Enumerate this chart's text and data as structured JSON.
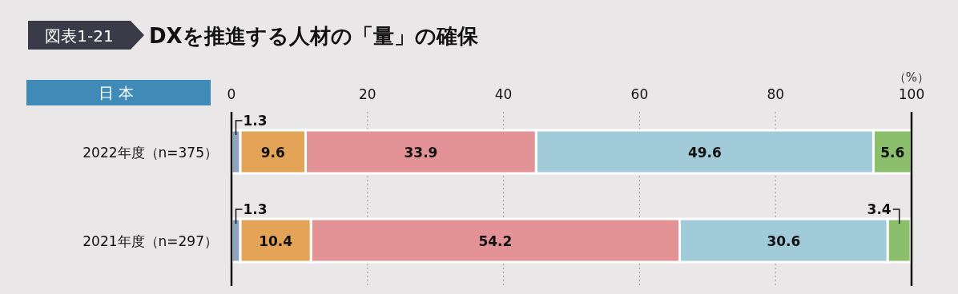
{
  "chart_data": {
    "type": "bar",
    "orientation": "horizontal",
    "stacked": true,
    "title": "DXを推進する人材の「量」の確保",
    "subtitle": "日本",
    "annotations": [
      "図表1-21"
    ],
    "xlabel": "（%）",
    "categories": [
      "2022年度（n=375）",
      "2021年度（n=297）"
    ],
    "series": [
      {
        "color": "#8fa3bf",
        "values": [
          1.3,
          1.3
        ]
      },
      {
        "color": "#e3a457",
        "values": [
          9.6,
          10.4
        ]
      },
      {
        "color": "#e39395",
        "values": [
          33.9,
          54.2
        ]
      },
      {
        "color": "#a1cbd8",
        "values": [
          49.6,
          30.6
        ]
      },
      {
        "color": "#8cbf6c",
        "values": [
          5.6,
          3.4
        ]
      }
    ],
    "xlim": [
      0,
      100
    ],
    "xticks": [
      0,
      20,
      40,
      60,
      80,
      100
    ],
    "grid": "x",
    "data_labels": true
  }
}
